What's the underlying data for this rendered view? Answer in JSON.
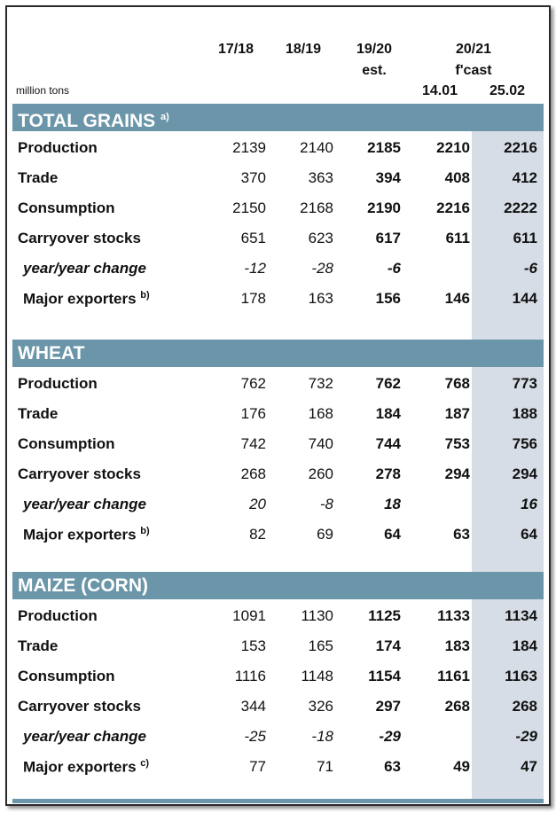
{
  "header": {
    "col1": "17/18",
    "col2": "18/19",
    "col3": "19/20",
    "col3_sub": "est.",
    "col45": "20/21",
    "col45_sub": "f'cast",
    "col4_date": "14.01",
    "col5_date": "25.02",
    "unit": "million tons"
  },
  "sections": [
    {
      "title": "TOTAL GRAINS",
      "note": "a)",
      "rows": [
        {
          "label": "Production",
          "note": "",
          "values": [
            "2139",
            "2140",
            "2185",
            "2210",
            "2216"
          ]
        },
        {
          "label": "Trade",
          "note": "",
          "values": [
            "370",
            "363",
            "394",
            "408",
            "412"
          ]
        },
        {
          "label": "Consumption",
          "note": "",
          "values": [
            "2150",
            "2168",
            "2190",
            "2216",
            "2222"
          ]
        },
        {
          "label": "Carryover stocks",
          "note": "",
          "values": [
            "651",
            "623",
            "617",
            "611",
            "611"
          ]
        },
        {
          "label": "year/year change",
          "note": "",
          "values": [
            "-12",
            "-28",
            "-6",
            "",
            "-6"
          ]
        },
        {
          "label": "Major exporters",
          "note": "b)",
          "values": [
            "178",
            "163",
            "156",
            "146",
            "144"
          ]
        }
      ]
    },
    {
      "title": "WHEAT",
      "note": "",
      "rows": [
        {
          "label": "Production",
          "note": "",
          "values": [
            "762",
            "732",
            "762",
            "768",
            "773"
          ]
        },
        {
          "label": "Trade",
          "note": "",
          "values": [
            "176",
            "168",
            "184",
            "187",
            "188"
          ]
        },
        {
          "label": "Consumption",
          "note": "",
          "values": [
            "742",
            "740",
            "744",
            "753",
            "756"
          ]
        },
        {
          "label": "Carryover stocks",
          "note": "",
          "values": [
            "268",
            "260",
            "278",
            "294",
            "294"
          ]
        },
        {
          "label": "year/year change",
          "note": "",
          "values": [
            "20",
            "-8",
            "18",
            "",
            "16"
          ]
        },
        {
          "label": "Major exporters",
          "note": "b)",
          "values": [
            "82",
            "69",
            "64",
            "63",
            "64"
          ]
        }
      ]
    },
    {
      "title": "MAIZE (CORN)",
      "note": "",
      "rows": [
        {
          "label": "Production",
          "note": "",
          "values": [
            "1091",
            "1130",
            "1125",
            "1133",
            "1134"
          ]
        },
        {
          "label": "Trade",
          "note": "",
          "values": [
            "153",
            "165",
            "174",
            "183",
            "184"
          ]
        },
        {
          "label": "Consumption",
          "note": "",
          "values": [
            "1116",
            "1148",
            "1154",
            "1161",
            "1163"
          ]
        },
        {
          "label": "Carryover stocks",
          "note": "",
          "values": [
            "344",
            "326",
            "297",
            "268",
            "268"
          ]
        },
        {
          "label": "year/year change",
          "note": "",
          "values": [
            "-25",
            "-18",
            "-29",
            "",
            "-29"
          ]
        },
        {
          "label": "Major exporters",
          "note": "c)",
          "values": [
            "77",
            "71",
            "63",
            "49",
            "47"
          ]
        }
      ]
    }
  ],
  "colors": {
    "band": "#6b95a8",
    "shade": "#d7dde6"
  }
}
